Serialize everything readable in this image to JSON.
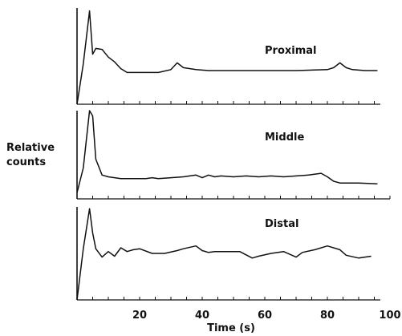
{
  "chart_data": {
    "type": "line",
    "xlabel": "Time (s)",
    "ylabel": [
      "Relative",
      "counts"
    ],
    "xlim": [
      0,
      100
    ],
    "xticks": [
      20,
      40,
      60,
      80,
      100
    ],
    "grid": false,
    "panels": [
      {
        "label": "Proximal",
        "x": [
          0,
          2,
          4,
          5,
          6,
          8,
          10,
          12,
          14,
          16,
          18,
          22,
          26,
          30,
          32,
          34,
          38,
          42,
          50,
          60,
          70,
          80,
          82,
          84,
          86,
          88,
          92,
          96
        ],
        "y": [
          0.0,
          0.42,
          0.97,
          0.52,
          0.58,
          0.57,
          0.49,
          0.44,
          0.37,
          0.33,
          0.33,
          0.33,
          0.33,
          0.36,
          0.43,
          0.38,
          0.36,
          0.35,
          0.35,
          0.35,
          0.35,
          0.36,
          0.38,
          0.43,
          0.38,
          0.36,
          0.35,
          0.35
        ]
      },
      {
        "label": "Middle",
        "x": [
          0,
          2,
          4,
          5,
          6,
          8,
          10,
          14,
          18,
          22,
          24,
          26,
          30,
          34,
          38,
          40,
          42,
          44,
          46,
          50,
          54,
          58,
          62,
          66,
          70,
          74,
          78,
          80,
          82,
          84,
          86,
          90,
          96
        ],
        "y": [
          0.07,
          0.35,
          1.0,
          0.94,
          0.45,
          0.27,
          0.25,
          0.23,
          0.23,
          0.23,
          0.24,
          0.23,
          0.24,
          0.25,
          0.27,
          0.24,
          0.27,
          0.25,
          0.26,
          0.25,
          0.26,
          0.25,
          0.26,
          0.25,
          0.26,
          0.27,
          0.29,
          0.25,
          0.2,
          0.18,
          0.18,
          0.18,
          0.17
        ]
      },
      {
        "label": "Distal",
        "x": [
          0,
          2,
          4,
          5,
          6,
          8,
          10,
          12,
          14,
          16,
          18,
          20,
          24,
          28,
          32,
          34,
          38,
          40,
          42,
          44,
          48,
          52,
          56,
          58,
          62,
          66,
          70,
          72,
          76,
          80,
          84,
          86,
          90,
          94
        ],
        "y": [
          0.0,
          0.55,
          0.98,
          0.72,
          0.55,
          0.46,
          0.52,
          0.47,
          0.56,
          0.52,
          0.54,
          0.55,
          0.5,
          0.5,
          0.53,
          0.55,
          0.58,
          0.53,
          0.51,
          0.52,
          0.52,
          0.52,
          0.45,
          0.47,
          0.5,
          0.52,
          0.46,
          0.51,
          0.54,
          0.58,
          0.54,
          0.48,
          0.45,
          0.47
        ]
      }
    ]
  }
}
